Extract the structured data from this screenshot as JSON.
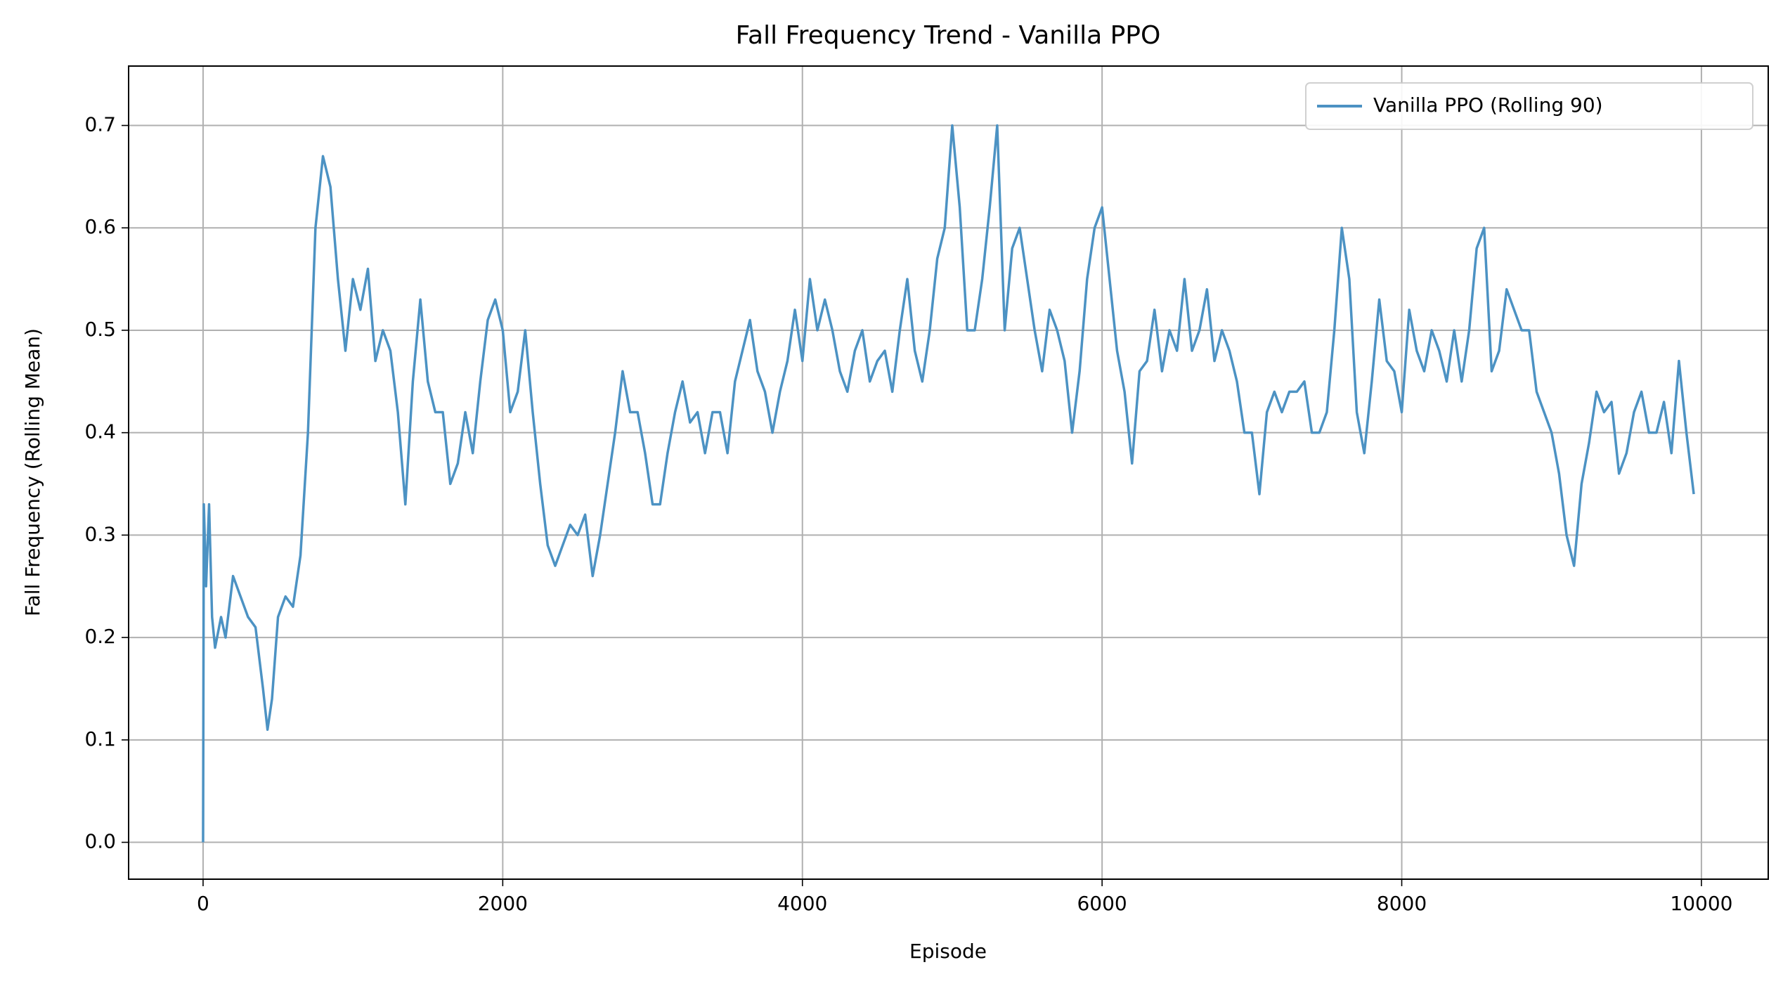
{
  "chart_data": {
    "type": "line",
    "title": "Fall Frequency Trend - Vanilla PPO",
    "x_label": "Episode",
    "y_label": "Fall Frequency (Rolling Mean)",
    "x": [
      0,
      5,
      20,
      40,
      60,
      80,
      120,
      150,
      200,
      250,
      300,
      350,
      400,
      430,
      460,
      500,
      550,
      600,
      650,
      700,
      750,
      800,
      850,
      900,
      950,
      1000,
      1050,
      1100,
      1150,
      1200,
      1250,
      1300,
      1350,
      1400,
      1450,
      1500,
      1550,
      1600,
      1650,
      1700,
      1750,
      1800,
      1850,
      1900,
      1950,
      2000,
      2050,
      2100,
      2150,
      2200,
      2250,
      2300,
      2350,
      2400,
      2450,
      2500,
      2550,
      2600,
      2650,
      2700,
      2750,
      2800,
      2850,
      2900,
      2950,
      3000,
      3050,
      3100,
      3150,
      3200,
      3250,
      3300,
      3350,
      3400,
      3450,
      3500,
      3550,
      3600,
      3650,
      3700,
      3750,
      3800,
      3850,
      3900,
      3950,
      4000,
      4050,
      4100,
      4150,
      4200,
      4250,
      4300,
      4350,
      4400,
      4450,
      4500,
      4550,
      4600,
      4650,
      4700,
      4750,
      4800,
      4850,
      4900,
      4950,
      5000,
      5050,
      5100,
      5150,
      5200,
      5250,
      5300,
      5350,
      5400,
      5450,
      5500,
      5550,
      5600,
      5650,
      5700,
      5750,
      5800,
      5850,
      5900,
      5950,
      6000,
      6050,
      6100,
      6150,
      6200,
      6250,
      6300,
      6350,
      6400,
      6450,
      6500,
      6550,
      6600,
      6650,
      6700,
      6750,
      6800,
      6850,
      6900,
      6950,
      7000,
      7050,
      7100,
      7150,
      7200,
      7250,
      7300,
      7350,
      7400,
      7450,
      7500,
      7550,
      7600,
      7650,
      7700,
      7750,
      7800,
      7850,
      7900,
      7950,
      8000,
      8050,
      8100,
      8150,
      8200,
      8250,
      8300,
      8350,
      8400,
      8450,
      8500,
      8550,
      8600,
      8650,
      8700,
      8750,
      8800,
      8850,
      8900,
      8950,
      9000,
      9050,
      9100,
      9150,
      9200,
      9250,
      9300,
      9350,
      9400,
      9450,
      9500,
      9550,
      9600,
      9650,
      9700,
      9750,
      9800,
      9850,
      9900,
      9949
    ],
    "series": [
      {
        "name": "Vanilla PPO (Rolling 90)",
        "color": "#4c92c3",
        "values": [
          0,
          0.33,
          0.25,
          0.33,
          0.22,
          0.19,
          0.22,
          0.2,
          0.26,
          0.24,
          0.22,
          0.21,
          0.15,
          0.11,
          0.14,
          0.22,
          0.24,
          0.23,
          0.28,
          0.4,
          0.6,
          0.67,
          0.64,
          0.55,
          0.48,
          0.55,
          0.52,
          0.56,
          0.47,
          0.5,
          0.48,
          0.42,
          0.33,
          0.45,
          0.53,
          0.45,
          0.42,
          0.42,
          0.35,
          0.37,
          0.42,
          0.38,
          0.45,
          0.51,
          0.53,
          0.5,
          0.42,
          0.44,
          0.5,
          0.42,
          0.35,
          0.29,
          0.27,
          0.29,
          0.31,
          0.3,
          0.32,
          0.26,
          0.3,
          0.35,
          0.4,
          0.46,
          0.42,
          0.42,
          0.38,
          0.33,
          0.33,
          0.38,
          0.42,
          0.45,
          0.41,
          0.42,
          0.38,
          0.42,
          0.42,
          0.38,
          0.45,
          0.48,
          0.51,
          0.46,
          0.44,
          0.4,
          0.44,
          0.47,
          0.52,
          0.47,
          0.55,
          0.5,
          0.53,
          0.5,
          0.46,
          0.44,
          0.48,
          0.5,
          0.45,
          0.47,
          0.48,
          0.44,
          0.5,
          0.55,
          0.48,
          0.45,
          0.5,
          0.57,
          0.6,
          0.7,
          0.62,
          0.5,
          0.5,
          0.55,
          0.62,
          0.7,
          0.5,
          0.58,
          0.6,
          0.55,
          0.5,
          0.46,
          0.52,
          0.5,
          0.47,
          0.4,
          0.46,
          0.55,
          0.6,
          0.62,
          0.55,
          0.48,
          0.44,
          0.37,
          0.46,
          0.47,
          0.52,
          0.46,
          0.5,
          0.48,
          0.55,
          0.48,
          0.5,
          0.54,
          0.47,
          0.5,
          0.48,
          0.45,
          0.4,
          0.4,
          0.34,
          0.42,
          0.44,
          0.42,
          0.44,
          0.44,
          0.45,
          0.4,
          0.4,
          0.42,
          0.5,
          0.6,
          0.55,
          0.42,
          0.38,
          0.45,
          0.53,
          0.47,
          0.46,
          0.42,
          0.52,
          0.48,
          0.46,
          0.5,
          0.48,
          0.45,
          0.5,
          0.45,
          0.5,
          0.58,
          0.6,
          0.46,
          0.48,
          0.54,
          0.52,
          0.5,
          0.5,
          0.44,
          0.42,
          0.4,
          0.36,
          0.3,
          0.27,
          0.35,
          0.39,
          0.44,
          0.42,
          0.43,
          0.36,
          0.38,
          0.42,
          0.44,
          0.4,
          0.4,
          0.43,
          0.38,
          0.47,
          0.4,
          0.34
        ]
      }
    ],
    "xlim": [
      -497,
      10446
    ],
    "xticks": [
      0,
      2000,
      4000,
      6000,
      8000,
      10000
    ],
    "ylim": [
      -0.036,
      0.758
    ],
    "yticks": [
      {
        "value": 0,
        "label": "0.0"
      },
      0.1,
      0.2,
      0.3,
      0.4,
      0.5,
      0.6,
      0.7
    ],
    "grid": true,
    "legend": "upper right"
  }
}
